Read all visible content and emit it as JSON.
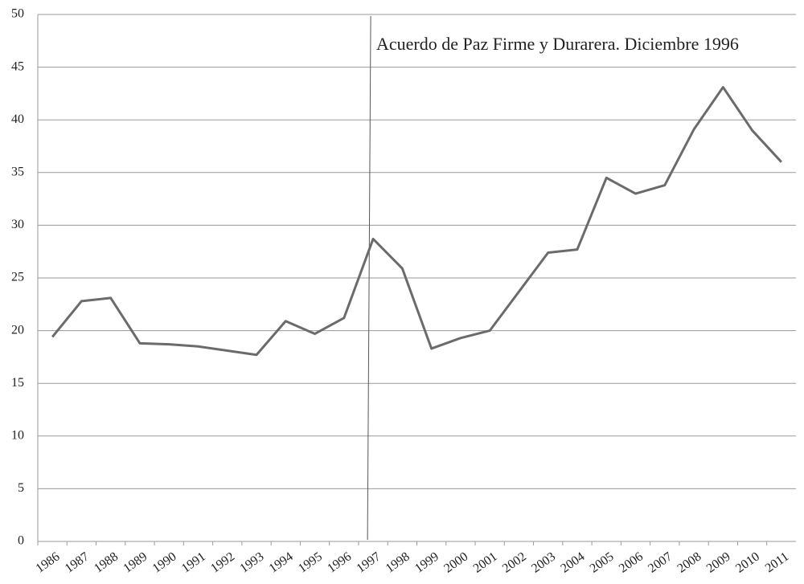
{
  "chart_data": {
    "type": "line",
    "annotation": "Acuerdo de Paz Firme y Durarera. Diciembre 1996",
    "categories": [
      "1986",
      "1987",
      "1988",
      "1989",
      "1990",
      "1991",
      "1992",
      "1993",
      "1994",
      "1995",
      "1996",
      "1997",
      "1998",
      "1999",
      "2000",
      "2001",
      "2002",
      "2003",
      "2004",
      "2005",
      "2006",
      "2007",
      "2008",
      "2009",
      "2010",
      "2011"
    ],
    "series": [
      {
        "color": "#6b6b6b",
        "values": [
          19.4,
          22.8,
          23.1,
          18.8,
          18.7,
          18.5,
          18.1,
          17.7,
          20.9,
          19.7,
          21.2,
          28.7,
          25.9,
          18.3,
          19.3,
          20.0,
          23.7,
          27.4,
          27.7,
          34.5,
          33.0,
          33.8,
          39.1,
          43.1,
          39.0,
          36.0
        ]
      }
    ],
    "ylim": [
      0,
      50
    ],
    "yticks": [
      0,
      5,
      10,
      15,
      20,
      25,
      30,
      35,
      40,
      45,
      50
    ],
    "grid": true
  }
}
